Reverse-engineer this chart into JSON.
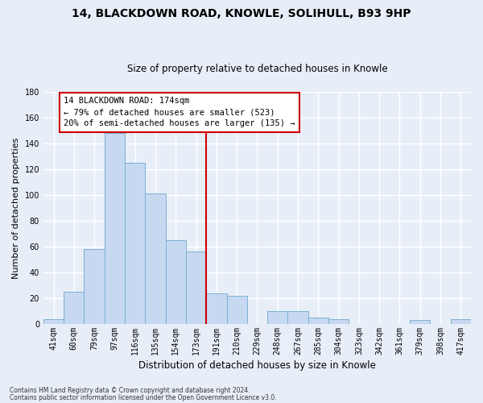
{
  "title": "14, BLACKDOWN ROAD, KNOWLE, SOLIHULL, B93 9HP",
  "subtitle": "Size of property relative to detached houses in Knowle",
  "xlabel": "Distribution of detached houses by size in Knowle",
  "ylabel": "Number of detached properties",
  "bar_labels": [
    "41sqm",
    "60sqm",
    "79sqm",
    "97sqm",
    "116sqm",
    "135sqm",
    "154sqm",
    "173sqm",
    "191sqm",
    "210sqm",
    "229sqm",
    "248sqm",
    "267sqm",
    "285sqm",
    "304sqm",
    "323sqm",
    "342sqm",
    "361sqm",
    "379sqm",
    "398sqm",
    "417sqm"
  ],
  "bar_heights": [
    4,
    25,
    58,
    148,
    125,
    101,
    65,
    56,
    24,
    22,
    0,
    10,
    10,
    5,
    4,
    0,
    0,
    0,
    3,
    0,
    4
  ],
  "bar_color": "#c6d9f0",
  "bar_edge_color": "#7bafd4",
  "vline_color": "#cc0000",
  "ylim": [
    0,
    180
  ],
  "yticks": [
    0,
    20,
    40,
    60,
    80,
    100,
    120,
    140,
    160,
    180
  ],
  "annotation_title": "14 BLACKDOWN ROAD: 174sqm",
  "annotation_line1": "← 79% of detached houses are smaller (523)",
  "annotation_line2": "20% of semi-detached houses are larger (135) →",
  "footnote1": "Contains HM Land Registry data © Crown copyright and database right 2024.",
  "footnote2": "Contains public sector information licensed under the Open Government Licence v3.0.",
  "bg_color": "#e8eef8",
  "plot_bg_color": "#e8eef8",
  "grid_color": "#ffffff",
  "title_fontsize": 10,
  "subtitle_fontsize": 8.5,
  "ylabel_fontsize": 8,
  "xlabel_fontsize": 8.5,
  "tick_fontsize": 7,
  "annot_fontsize": 7.5
}
